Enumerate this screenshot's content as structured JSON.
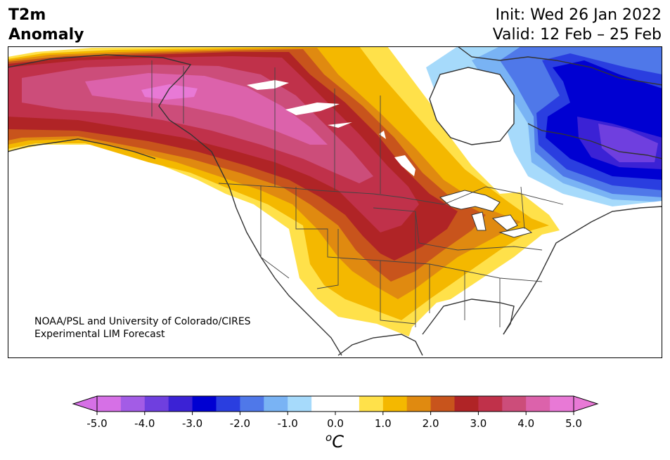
{
  "title": {
    "line1": "T2m",
    "line2": "Anomaly"
  },
  "dates": {
    "init": "Init: Wed 26 Jan 2022",
    "valid": "Valid: 12 Feb – 25 Feb"
  },
  "credit": {
    "line1": "NOAA/PSL and University of Colorado/CIRES",
    "line2": "Experimental LIM Forecast"
  },
  "colorbar": {
    "colors": [
      "#d670e6",
      "#a35ce6",
      "#6f3fdf",
      "#3b22d5",
      "#0000d2",
      "#2a3ee0",
      "#4f78e9",
      "#79b3f4",
      "#a6dafb",
      "#ffffff",
      "#ffffff",
      "#ffe14a",
      "#f4b800",
      "#e08a10",
      "#c8541c",
      "#b02426",
      "#c0314a",
      "#cc4d7a",
      "#dc62ab",
      "#e879d6"
    ],
    "tick_labels": [
      "-5.0",
      "-4.0",
      "-3.0",
      "-2.0",
      "-1.0",
      "0.0",
      "1.0",
      "2.0",
      "3.0",
      "4.0",
      "5.0"
    ],
    "unit_base": "C",
    "unit_sup": "o",
    "min": -5.0,
    "max": 5.0
  }
}
